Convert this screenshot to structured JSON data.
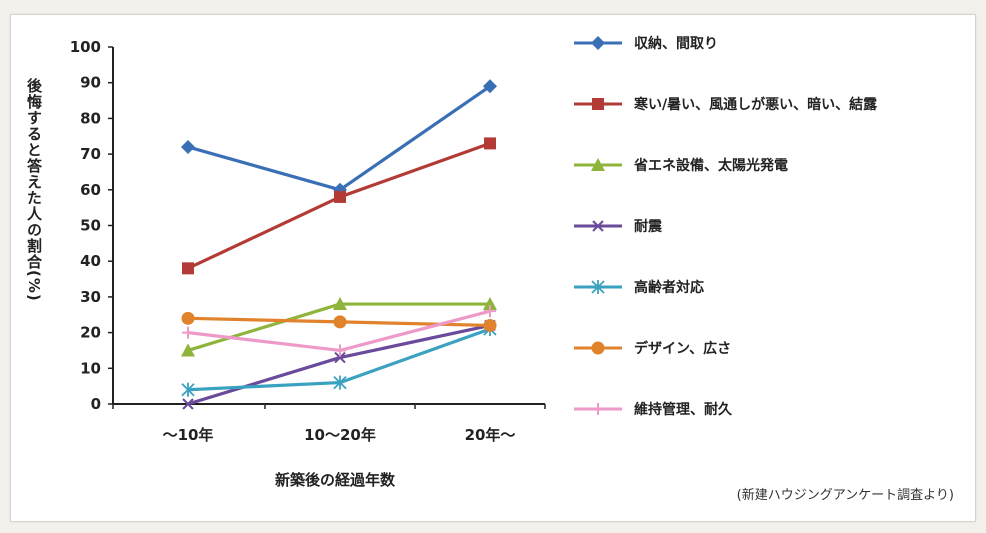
{
  "chart_data": {
    "type": "line",
    "categories": [
      "〜10年",
      "10〜20年",
      "20年〜"
    ],
    "xlabel": "新築後の経過年数",
    "ylabel": "後悔すると答えた人の割合(%)",
    "ylim": [
      0,
      100
    ],
    "yticks": [
      0,
      10,
      20,
      30,
      40,
      50,
      60,
      70,
      80,
      90,
      100
    ],
    "grid": false,
    "legend_position": "right",
    "series": [
      {
        "name": "収納、間取り",
        "color": "#3a6fb5",
        "marker": "diamond",
        "values": [
          72,
          60,
          89
        ]
      },
      {
        "name": "寒い/暑い、風通しが悪い、暗い、結露",
        "color": "#b33b36",
        "marker": "square",
        "values": [
          38,
          58,
          73
        ]
      },
      {
        "name": "省エネ設備、太陽光発電",
        "color": "#8fb43c",
        "marker": "triangle",
        "values": [
          15,
          28,
          28
        ]
      },
      {
        "name": "耐震",
        "color": "#6a4a9a",
        "marker": "x",
        "values": [
          0,
          13,
          22
        ]
      },
      {
        "name": "高齢者対応",
        "color": "#3aa2c0",
        "marker": "star",
        "values": [
          4,
          6,
          21
        ]
      },
      {
        "name": "デザイン、広さ",
        "color": "#e0832c",
        "marker": "circle",
        "values": [
          24,
          23,
          22
        ]
      },
      {
        "name": "維持管理、耐久",
        "color": "#ee9ac8",
        "marker": "plus",
        "values": [
          20,
          15,
          26
        ]
      }
    ]
  },
  "source_note": "(新建ハウジングアンケート調査より)"
}
